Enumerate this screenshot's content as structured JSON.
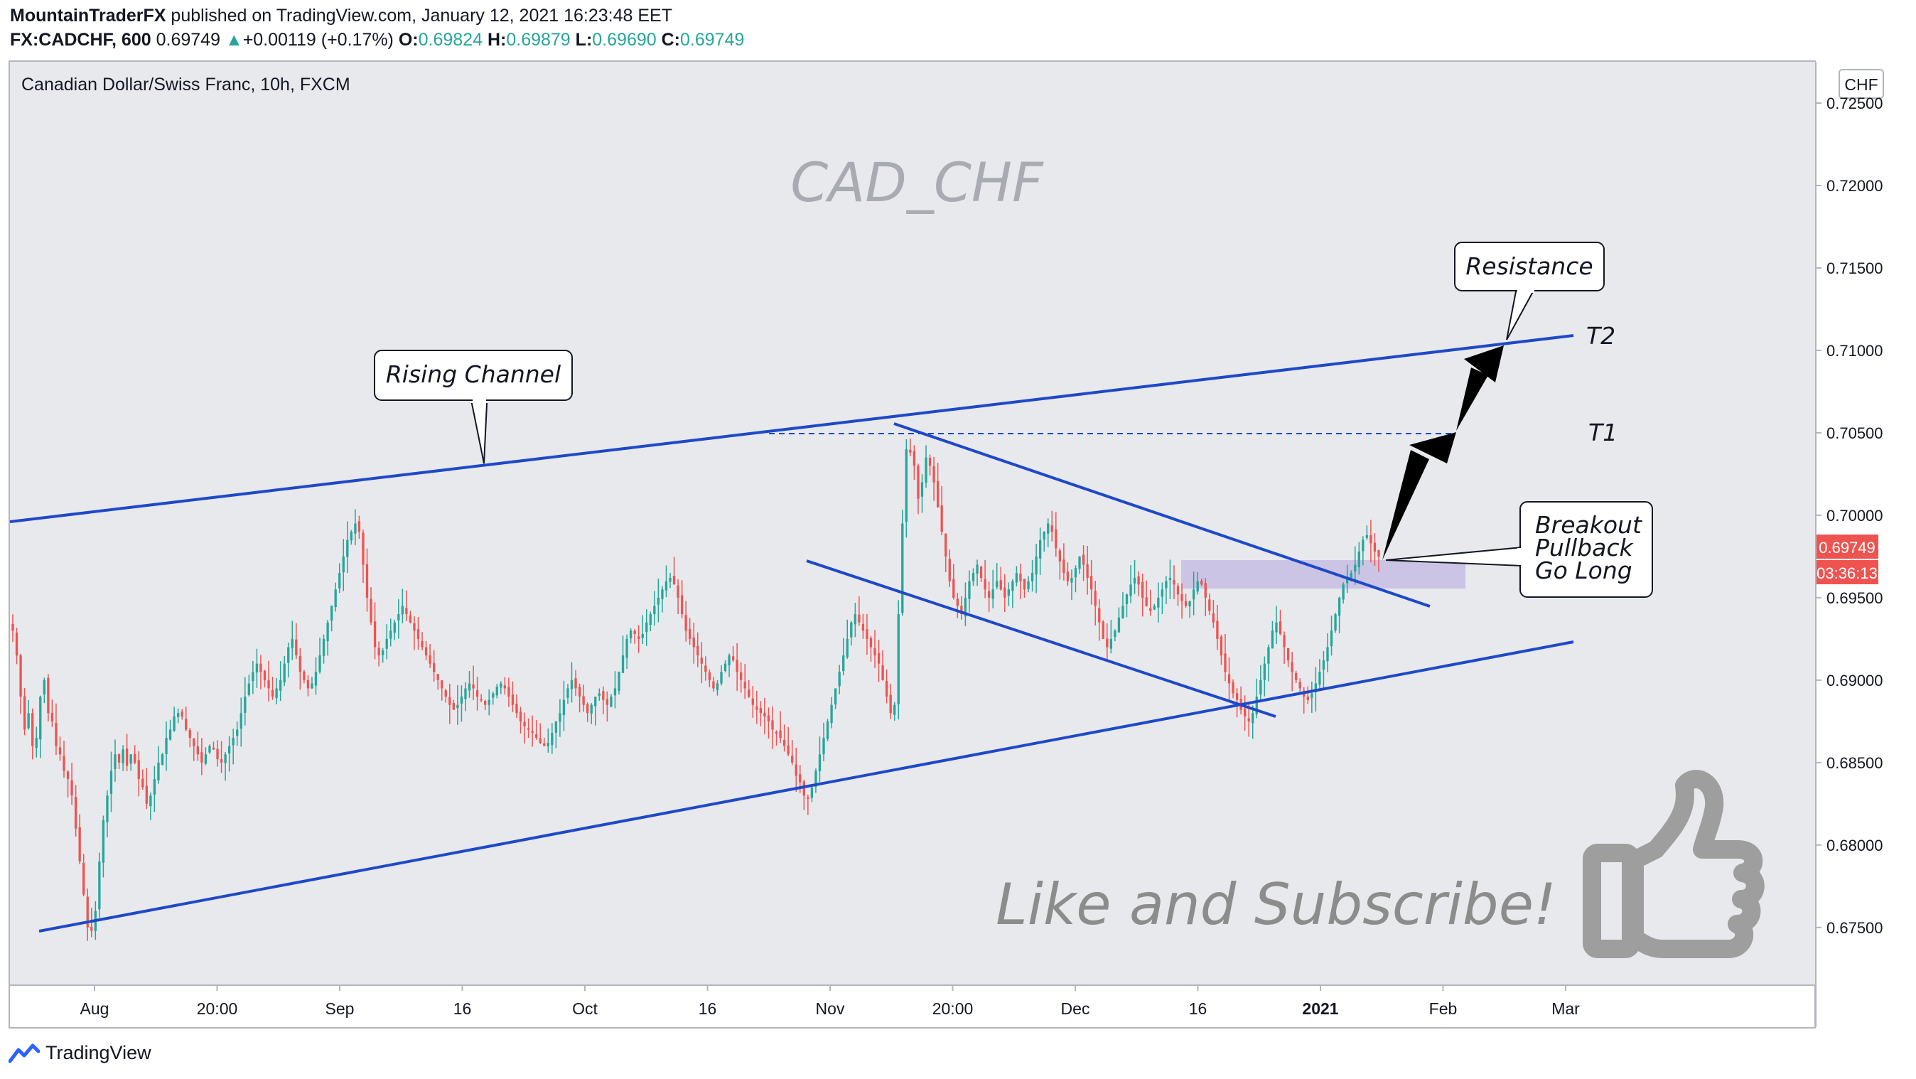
{
  "header": {
    "publisher": "MountainTraderFX",
    "published_text": "published on TradingView.com, January 12, 2021 16:23:48 EET",
    "symbol": "FX:CADCHF, 600",
    "last": "0.69749",
    "change_arrow": "▲",
    "change": "+0.00119 (+0.17%)",
    "o_label": "O:",
    "o": "0.69824",
    "h_label": "H:",
    "h": "0.69879",
    "l_label": "L:",
    "l": "0.69690",
    "c_label": "C:",
    "c": "0.69749"
  },
  "footer": {
    "brand": "TradingView",
    "logo_icon": "tradingview-logo-icon"
  },
  "colors": {
    "up": "#26a69a",
    "down": "#ef5350",
    "line": "#1e49c8",
    "plot_bg": "#e8e9ed",
    "price_tag": "#ef5350",
    "zone": "#c5bde3"
  },
  "chart_data": {
    "type": "candlestick",
    "title": "Canadian Dollar/Swiss Franc, 10h, FXCM",
    "watermark": "CAD_CHF",
    "currency": "CHF",
    "ylim": [
      0.6715,
      0.7275
    ],
    "y_ticks": [
      "0.72500",
      "0.72000",
      "0.71500",
      "0.71000",
      "0.70500",
      "0.70000",
      "0.69500",
      "0.69000",
      "0.68500",
      "0.68000",
      "0.67500"
    ],
    "x_ticks": [
      "Aug",
      "20:00",
      "Sep",
      "16",
      "Oct",
      "16",
      "Nov",
      "20:00",
      "Dec",
      "16",
      "2021",
      "Feb",
      "Mar"
    ],
    "last_price_label": "0.69749",
    "countdown_label": "03:36:13",
    "closes": [
      0.693,
      0.6915,
      0.689,
      0.687,
      0.688,
      0.686,
      0.6865,
      0.689,
      0.69,
      0.688,
      0.6875,
      0.686,
      0.6855,
      0.6845,
      0.684,
      0.683,
      0.681,
      0.679,
      0.677,
      0.675,
      0.6748,
      0.676,
      0.679,
      0.6815,
      0.683,
      0.6845,
      0.6855,
      0.685,
      0.6858,
      0.6848,
      0.6855,
      0.685,
      0.684,
      0.6835,
      0.6825,
      0.683,
      0.684,
      0.685,
      0.6855,
      0.6865,
      0.687,
      0.6878,
      0.688,
      0.6878,
      0.687,
      0.6865,
      0.686,
      0.6855,
      0.685,
      0.6855,
      0.686,
      0.6858,
      0.6852,
      0.685,
      0.6855,
      0.686,
      0.6865,
      0.687,
      0.688,
      0.689,
      0.6898,
      0.6905,
      0.691,
      0.6905,
      0.69,
      0.6895,
      0.689,
      0.6895,
      0.69,
      0.691,
      0.692,
      0.6925,
      0.6915,
      0.6905,
      0.69,
      0.6895,
      0.6898,
      0.6905,
      0.6915,
      0.6925,
      0.6935,
      0.6945,
      0.6955,
      0.6965,
      0.6975,
      0.6985,
      0.699,
      0.6995,
      0.699,
      0.697,
      0.695,
      0.6935,
      0.692,
      0.6915,
      0.6918,
      0.6925,
      0.693,
      0.6935,
      0.694,
      0.6945,
      0.694,
      0.6935,
      0.693,
      0.6925,
      0.692,
      0.6915,
      0.691,
      0.6905,
      0.69,
      0.6895,
      0.689,
      0.6885,
      0.6882,
      0.6885,
      0.689,
      0.6895,
      0.6898,
      0.6895,
      0.689,
      0.6888,
      0.6885,
      0.6888,
      0.6892,
      0.6896,
      0.6898,
      0.6895,
      0.689,
      0.6885,
      0.688,
      0.6875,
      0.6872,
      0.687,
      0.6868,
      0.6865,
      0.6862,
      0.686,
      0.6862,
      0.6868,
      0.6875,
      0.688,
      0.6888,
      0.6895,
      0.69,
      0.6895,
      0.689,
      0.6885,
      0.688,
      0.6885,
      0.689,
      0.6892,
      0.6888,
      0.6885,
      0.689,
      0.6895,
      0.6905,
      0.6915,
      0.6925,
      0.693,
      0.6928,
      0.6925,
      0.6928,
      0.6935,
      0.694,
      0.6945,
      0.695,
      0.6955,
      0.696,
      0.6962,
      0.6958,
      0.695,
      0.694,
      0.693,
      0.6925,
      0.692,
      0.6915,
      0.691,
      0.6905,
      0.69,
      0.6895,
      0.6898,
      0.6905,
      0.691,
      0.6915,
      0.6912,
      0.6905,
      0.69,
      0.6895,
      0.689,
      0.6885,
      0.6882,
      0.688,
      0.6878,
      0.6875,
      0.687,
      0.6868,
      0.6865,
      0.686,
      0.6855,
      0.685,
      0.6842,
      0.6838,
      0.683,
      0.6828,
      0.6835,
      0.6845,
      0.6855,
      0.6865,
      0.6875,
      0.6885,
      0.6895,
      0.6905,
      0.6915,
      0.6925,
      0.6935,
      0.694,
      0.6935,
      0.693,
      0.6925,
      0.692,
      0.6915,
      0.691,
      0.69,
      0.689,
      0.688,
      0.6885,
      0.694,
      0.6995,
      0.704,
      0.7038,
      0.703,
      0.701,
      0.702,
      0.7035,
      0.703,
      0.702,
      0.7005,
      0.699,
      0.6975,
      0.696,
      0.695,
      0.6945,
      0.694,
      0.695,
      0.696,
      0.6965,
      0.697,
      0.6962,
      0.6955,
      0.695,
      0.6955,
      0.696,
      0.6955,
      0.695,
      0.6955,
      0.696,
      0.6965,
      0.696,
      0.6955,
      0.696,
      0.6965,
      0.6975,
      0.6985,
      0.699,
      0.6995,
      0.699,
      0.698,
      0.6972,
      0.6965,
      0.696,
      0.6962,
      0.6968,
      0.6975,
      0.697,
      0.6962,
      0.6955,
      0.6945,
      0.6935,
      0.6925,
      0.692,
      0.6925,
      0.693,
      0.6938,
      0.6945,
      0.6952,
      0.6958,
      0.6962,
      0.6958,
      0.695,
      0.6945,
      0.6942,
      0.6945,
      0.695,
      0.6955,
      0.696,
      0.6962,
      0.6958,
      0.6952,
      0.6948,
      0.6945,
      0.6948,
      0.6955,
      0.696,
      0.6958,
      0.695,
      0.6942,
      0.6935,
      0.6925,
      0.6915,
      0.6905,
      0.6898,
      0.6892,
      0.6888,
      0.6882,
      0.6878,
      0.6875,
      0.688,
      0.689,
      0.69,
      0.691,
      0.692,
      0.693,
      0.6935,
      0.6928,
      0.692,
      0.6912,
      0.6905,
      0.69,
      0.6895,
      0.689,
      0.6888,
      0.6892,
      0.6898,
      0.6905,
      0.6912,
      0.692,
      0.693,
      0.694,
      0.695,
      0.6958,
      0.6962,
      0.6965,
      0.697,
      0.6978,
      0.6985,
      0.6988,
      0.6983,
      0.6978,
      0.6975
    ]
  },
  "annotations": {
    "rising_channel": "Rising Channel",
    "resistance": "Resistance",
    "breakout_lines": [
      "Breakout",
      "Pullback",
      "Go Long"
    ],
    "t1": "T1",
    "t2": "T2",
    "cta": "Like and Subscribe!",
    "thumb_icon": "thumbs-up-icon",
    "arrow_icon": "target-arrow-icon"
  }
}
